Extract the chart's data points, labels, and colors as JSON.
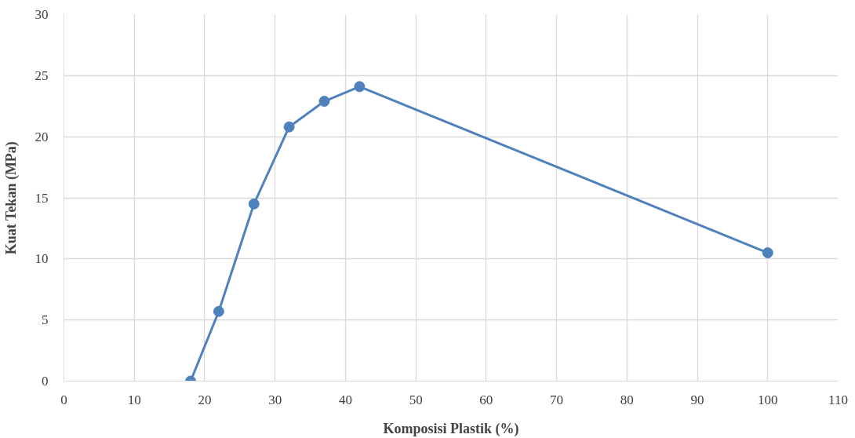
{
  "chart_data": {
    "type": "line",
    "xlabel": "Komposisi Plastik (%)",
    "ylabel": "Kuat Tekan (MPa)",
    "x": [
      18,
      22,
      27,
      32,
      37,
      42,
      100
    ],
    "series": [
      {
        "color": "#4f81bd",
        "values": [
          0,
          5.7,
          14.5,
          20.8,
          22.9,
          24.1,
          10.5
        ]
      }
    ],
    "xlim": [
      0,
      110
    ],
    "xticks": [
      0,
      10,
      20,
      30,
      40,
      50,
      60,
      70,
      80,
      90,
      100,
      110
    ],
    "ylim": [
      0,
      30
    ],
    "yticks": [
      0,
      5,
      10,
      15,
      20,
      25,
      30
    ],
    "grid": true,
    "marker": "circle",
    "line_style": "solid"
  }
}
